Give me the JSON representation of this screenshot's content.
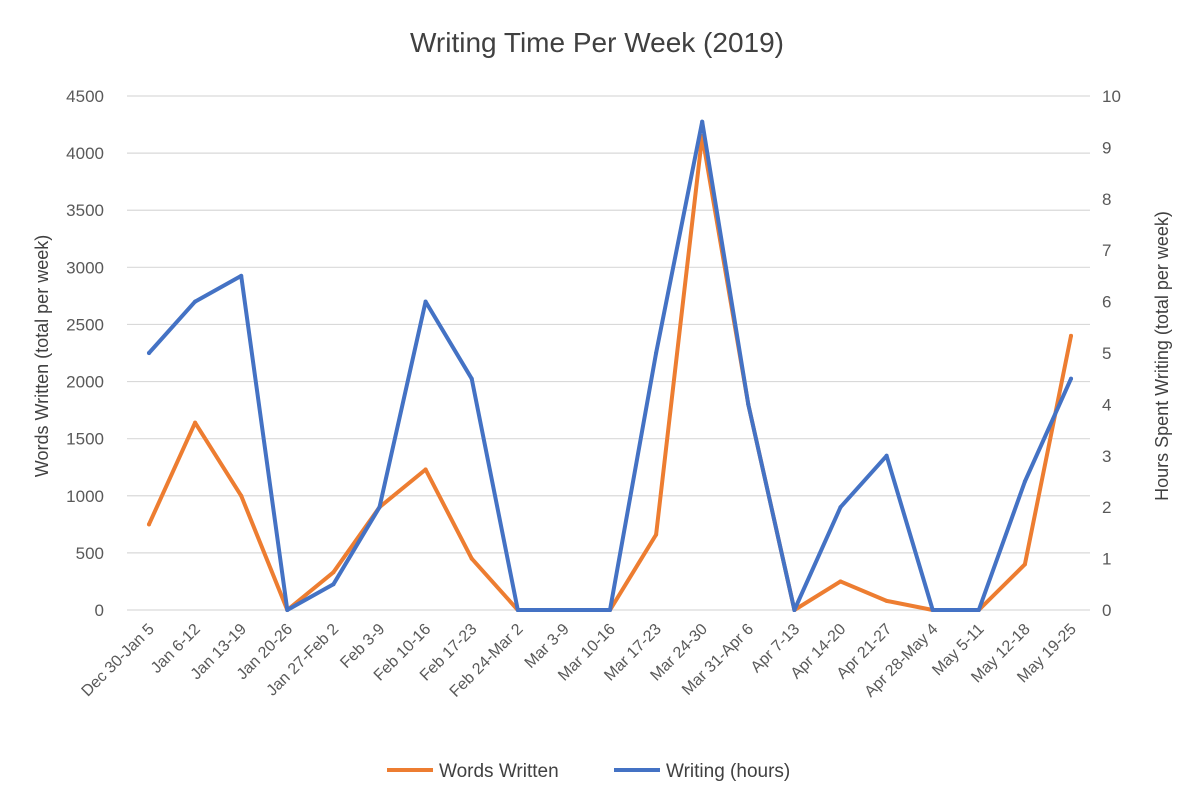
{
  "chart_data": {
    "type": "line",
    "title": "Writing Time Per Week (2019)",
    "ylabel": "Words Written (total per week)",
    "y2label": "Hours Spent Writing (total per week)",
    "ylim": [
      0,
      4500
    ],
    "y2lim": [
      0,
      10
    ],
    "yticks": [
      0,
      500,
      1000,
      1500,
      2000,
      2500,
      3000,
      3500,
      4000,
      4500
    ],
    "y2ticks": [
      0,
      1,
      2,
      3,
      4,
      5,
      6,
      7,
      8,
      9,
      10
    ],
    "grid": true,
    "legend_position": "bottom",
    "categories": [
      "Dec 30-Jan 5",
      "Jan 6-12",
      "Jan 13-19",
      "Jan 20-26",
      "Jan 27-Feb 2",
      "Feb 3-9",
      "Feb 10-16",
      "Feb 17-23",
      "Feb 24-Mar 2",
      "Mar 3-9",
      "Mar 10-16",
      "Mar 17-23",
      "Mar 24-30",
      "Mar 31-Apr 6",
      "Apr 7-13",
      "Apr 14-20",
      "Apr 21-27",
      "Apr 28-May 4",
      "May 5-11",
      "May 12-18",
      "May 19-25"
    ],
    "series": [
      {
        "name": "Words Written",
        "axis": "left",
        "color": "#ED7D31",
        "values": [
          750,
          1640,
          1000,
          0,
          330,
          900,
          1230,
          450,
          0,
          0,
          0,
          660,
          4150,
          1800,
          0,
          250,
          80,
          0,
          0,
          400,
          2400
        ]
      },
      {
        "name": "Writing (hours)",
        "axis": "right",
        "color": "#4472C4",
        "values": [
          5,
          6,
          6.5,
          0,
          0.5,
          2,
          6,
          4.5,
          0,
          0,
          0,
          5,
          9.5,
          4,
          0,
          2,
          3,
          0,
          0,
          2.5,
          4.5
        ]
      }
    ]
  }
}
